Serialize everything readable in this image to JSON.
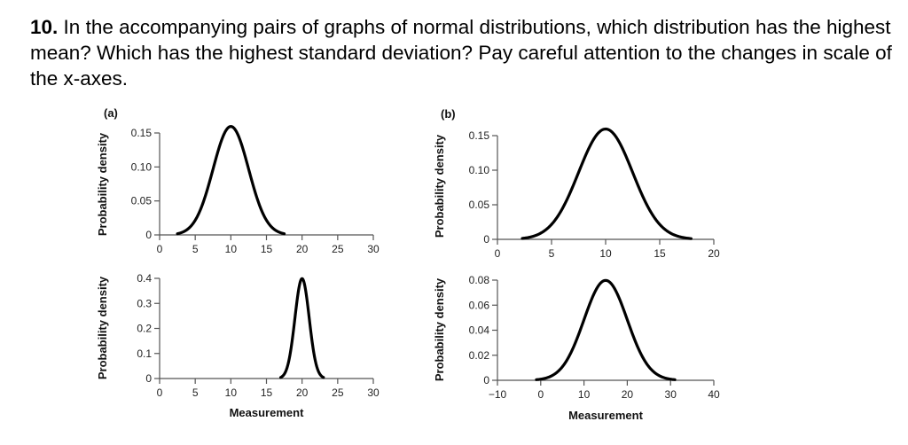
{
  "question": {
    "number": "10.",
    "text": "In the accompanying pairs of graphs of normal distributions, which distribution has the highest mean? Which has the highest standard deviation? Pay careful attention to the changes in scale of the x-axes."
  },
  "chart_data": [
    {
      "id": "a-top",
      "type": "line",
      "panel_label": "(a)",
      "distribution": "normal",
      "mean": 10,
      "sd": 2.5,
      "xlim": [
        0,
        30
      ],
      "ylim": [
        0,
        0.15
      ],
      "x_ticks": [
        0,
        5,
        10,
        15,
        20,
        25,
        30
      ],
      "y_ticks": [
        "0",
        "0.05",
        "0.10",
        "0.15"
      ],
      "curve_range": [
        2.5,
        17.5
      ],
      "ylabel": "Probability density",
      "xlabel": ""
    },
    {
      "id": "a-bottom",
      "type": "line",
      "panel_label": "",
      "distribution": "normal",
      "mean": 20,
      "sd": 1,
      "xlim": [
        0,
        30
      ],
      "ylim": [
        0,
        0.4
      ],
      "x_ticks": [
        0,
        5,
        10,
        15,
        20,
        25,
        30
      ],
      "y_ticks": [
        "0",
        "0.1",
        "0.2",
        "0.3",
        "0.4"
      ],
      "curve_range": [
        17,
        23
      ],
      "ylabel": "Probability density",
      "xlabel": "Measurement"
    },
    {
      "id": "b-top",
      "type": "line",
      "panel_label": "(b)",
      "distribution": "normal",
      "mean": 10,
      "sd": 2.5,
      "xlim": [
        0,
        20
      ],
      "ylim": [
        0,
        0.15
      ],
      "x_ticks": [
        0,
        5,
        10,
        15,
        20
      ],
      "y_ticks": [
        "0",
        "0.05",
        "0.10",
        "0.15"
      ],
      "curve_range": [
        2.3,
        17.9
      ],
      "ylabel": "Probability density",
      "xlabel": ""
    },
    {
      "id": "b-bottom",
      "type": "line",
      "panel_label": "",
      "distribution": "normal",
      "mean": 15,
      "sd": 5,
      "xlim": [
        -10,
        40
      ],
      "ylim": [
        0,
        0.08
      ],
      "x_ticks": [
        -10,
        0,
        10,
        20,
        30,
        40
      ],
      "y_ticks": [
        "0",
        "0.02",
        "0.04",
        "0.06",
        "0.08"
      ],
      "curve_range": [
        -1,
        31
      ],
      "ylabel": "Probability density",
      "xlabel": "Measurement"
    }
  ]
}
